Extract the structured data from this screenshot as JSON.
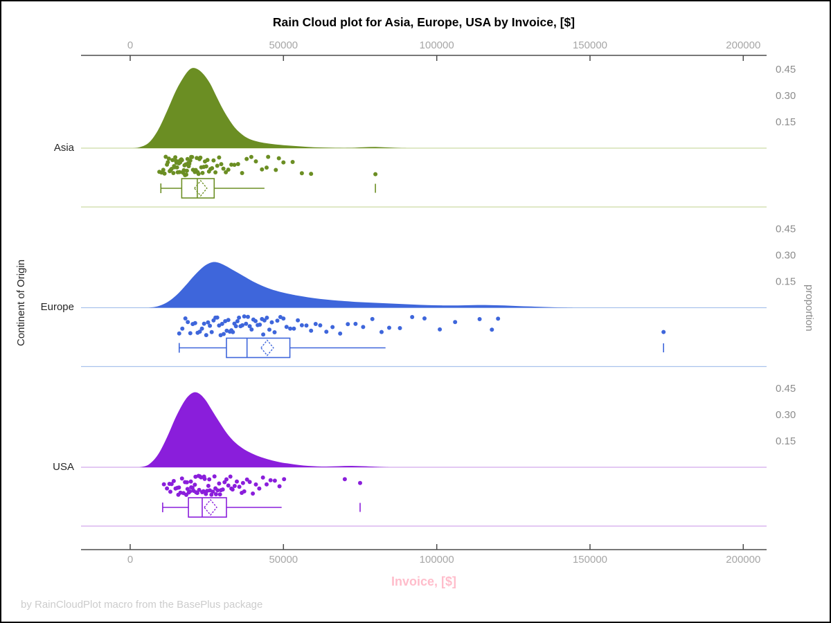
{
  "footnote": "by RainCloudPlot macro from the BasePlus package",
  "colors": {
    "axis": "#4a4a4a",
    "tick_label": "#a6a6a6",
    "proportion_label": "#8c8c8c",
    "title": "#000000",
    "xlabel": "#ffbdcb",
    "footnote": "#cccccc",
    "band_label": "#262626"
  },
  "chart_data": {
    "type": "raincloud",
    "title": "Rain Cloud plot for Asia, Europe, USA by Invoice, [$]",
    "xlabel": "Invoice, [$]",
    "ylabel": "Continent of Origin",
    "y2label": "proportion",
    "x_ticks": [
      0,
      50000,
      100000,
      150000,
      200000
    ],
    "x_tick_labels": [
      "0",
      "50000",
      "100000",
      "150000",
      "200000"
    ],
    "xlim": [
      -16000,
      207600
    ],
    "proportion_ticks": [
      0.45,
      0.3,
      0.15
    ],
    "proportion_tick_labels": [
      "0.45",
      "0.30",
      "0.15"
    ],
    "legend": "none",
    "grid": "off",
    "groups": [
      {
        "name": "Asia",
        "color": "#6b8e23",
        "light_color": "#ccd9a4",
        "box": {
          "whisker_min": 10000,
          "q1": 16800,
          "median": 21900,
          "mean": 23000,
          "q3": 27400,
          "whisker_max": 43800,
          "outliers": [
            80000
          ]
        },
        "density": [
          [
            500,
            0
          ],
          [
            3000,
            0.005
          ],
          [
            6000,
            0.03
          ],
          [
            9000,
            0.1
          ],
          [
            12000,
            0.21
          ],
          [
            15000,
            0.33
          ],
          [
            18000,
            0.42
          ],
          [
            20000,
            0.455
          ],
          [
            22000,
            0.45
          ],
          [
            24000,
            0.42
          ],
          [
            26000,
            0.37
          ],
          [
            28000,
            0.3
          ],
          [
            30000,
            0.23
          ],
          [
            32000,
            0.17
          ],
          [
            34000,
            0.12
          ],
          [
            36000,
            0.085
          ],
          [
            38000,
            0.06
          ],
          [
            40000,
            0.045
          ],
          [
            43000,
            0.032
          ],
          [
            46000,
            0.024
          ],
          [
            50000,
            0.017
          ],
          [
            54000,
            0.012
          ],
          [
            58000,
            0.007
          ],
          [
            62000,
            0.004
          ],
          [
            67000,
            0.002
          ],
          [
            72000,
            0.002
          ],
          [
            76000,
            0.005
          ],
          [
            80000,
            0.007
          ],
          [
            84000,
            0.004
          ],
          [
            88000,
            0.001
          ],
          [
            92000,
            0
          ]
        ],
        "rain": [
          9500,
          10200,
          10800,
          11200,
          11600,
          12000,
          12300,
          12600,
          12900,
          13200,
          13500,
          13800,
          14100,
          14300,
          14500,
          14700,
          14900,
          15100,
          15300,
          15500,
          15700,
          15900,
          16100,
          16300,
          16500,
          16700,
          16900,
          17100,
          17300,
          17500,
          17700,
          17900,
          18100,
          18300,
          18500,
          18700,
          18900,
          19100,
          19300,
          19600,
          19900,
          20200,
          20500,
          20800,
          21100,
          21400,
          21700,
          22000,
          22300,
          22600,
          22900,
          23200,
          23600,
          24000,
          24400,
          24800,
          25200,
          25700,
          26200,
          26700,
          27200,
          27800,
          28400,
          29000,
          29700,
          30400,
          31200,
          32000,
          33000,
          34000,
          35200,
          36500,
          38000,
          39500,
          41000,
          43000,
          45000,
          47500,
          50000,
          53000,
          56000,
          59000,
          44500,
          48500,
          80000
        ]
      },
      {
        "name": "Europe",
        "color": "#3e66db",
        "light_color": "#a9c2ec",
        "box": {
          "whisker_min": 16000,
          "q1": 31400,
          "median": 38100,
          "mean": 44700,
          "q3": 52100,
          "whisker_max": 83300,
          "outliers": [
            174000
          ]
        },
        "density": [
          [
            6000,
            0
          ],
          [
            9000,
            0.008
          ],
          [
            12000,
            0.03
          ],
          [
            15000,
            0.07
          ],
          [
            18000,
            0.125
          ],
          [
            21000,
            0.185
          ],
          [
            24000,
            0.235
          ],
          [
            26500,
            0.258
          ],
          [
            28500,
            0.258
          ],
          [
            31000,
            0.24
          ],
          [
            34000,
            0.21
          ],
          [
            37000,
            0.18
          ],
          [
            40000,
            0.15
          ],
          [
            43000,
            0.125
          ],
          [
            46000,
            0.105
          ],
          [
            49000,
            0.09
          ],
          [
            52000,
            0.078
          ],
          [
            56000,
            0.065
          ],
          [
            60000,
            0.054
          ],
          [
            64000,
            0.046
          ],
          [
            68000,
            0.04
          ],
          [
            72000,
            0.035
          ],
          [
            77000,
            0.03
          ],
          [
            82000,
            0.026
          ],
          [
            87000,
            0.022
          ],
          [
            92000,
            0.018
          ],
          [
            97000,
            0.015
          ],
          [
            102000,
            0.013
          ],
          [
            107000,
            0.013
          ],
          [
            112000,
            0.015
          ],
          [
            117000,
            0.015
          ],
          [
            122000,
            0.013
          ],
          [
            127000,
            0.009
          ],
          [
            132000,
            0.006
          ],
          [
            137000,
            0.003
          ],
          [
            142000,
            0.001
          ],
          [
            147000,
            0
          ]
        ],
        "rain": [
          16000,
          17000,
          18000,
          18800,
          19600,
          20400,
          21200,
          22000,
          22700,
          23400,
          24100,
          24800,
          25400,
          26000,
          26600,
          27200,
          27800,
          28400,
          29000,
          29500,
          30000,
          30500,
          31000,
          31500,
          32000,
          32500,
          33000,
          33500,
          34000,
          34500,
          35000,
          35500,
          36000,
          36600,
          37200,
          37800,
          38400,
          39000,
          39600,
          40200,
          40900,
          41600,
          42300,
          43000,
          43400,
          43800,
          44600,
          45400,
          46200,
          47100,
          48000,
          49000,
          50000,
          51000,
          52200,
          53400,
          54700,
          56000,
          57500,
          59000,
          60500,
          62000,
          64000,
          66000,
          68500,
          71000,
          73500,
          76000,
          79000,
          82000,
          84500,
          88000,
          92000,
          96000,
          101000,
          106000,
          114000,
          118000,
          120000,
          174000
        ]
      },
      {
        "name": "USA",
        "color": "#8a1edb",
        "light_color": "#d2a8ec",
        "box": {
          "whisker_min": 10600,
          "q1": 19000,
          "median": 23500,
          "mean": 26200,
          "q3": 31400,
          "whisker_max": 49400,
          "outliers": [
            75000
          ]
        },
        "density": [
          [
            3000,
            0
          ],
          [
            6000,
            0.015
          ],
          [
            9000,
            0.07
          ],
          [
            12000,
            0.17
          ],
          [
            15000,
            0.29
          ],
          [
            18000,
            0.385
          ],
          [
            20500,
            0.425
          ],
          [
            22500,
            0.42
          ],
          [
            24500,
            0.385
          ],
          [
            26500,
            0.33
          ],
          [
            29000,
            0.26
          ],
          [
            31500,
            0.195
          ],
          [
            34000,
            0.145
          ],
          [
            36500,
            0.11
          ],
          [
            39000,
            0.085
          ],
          [
            41500,
            0.065
          ],
          [
            44000,
            0.05
          ],
          [
            46500,
            0.038
          ],
          [
            49000,
            0.028
          ],
          [
            52000,
            0.02
          ],
          [
            55000,
            0.013
          ],
          [
            58000,
            0.008
          ],
          [
            61000,
            0.005
          ],
          [
            64000,
            0.004
          ],
          [
            68000,
            0.006
          ],
          [
            72000,
            0.008
          ],
          [
            76000,
            0.006
          ],
          [
            80000,
            0.003
          ],
          [
            85000,
            0
          ]
        ],
        "rain": [
          11000,
          12000,
          12800,
          13500,
          14200,
          14800,
          15400,
          15900,
          16400,
          16900,
          17400,
          17900,
          18300,
          18700,
          19100,
          19500,
          19900,
          20300,
          20700,
          21100,
          21500,
          21900,
          22300,
          22700,
          23100,
          23500,
          23900,
          24300,
          24700,
          25100,
          25500,
          26000,
          26500,
          27000,
          27500,
          28000,
          28500,
          29000,
          29600,
          30200,
          30800,
          31400,
          32000,
          32700,
          33400,
          34100,
          34800,
          35600,
          36400,
          37200,
          38100,
          39000,
          40000,
          41000,
          42100,
          43300,
          44500,
          45800,
          47200,
          48700,
          50200,
          27800,
          24100,
          21300,
          18500,
          15700,
          13100,
          22500,
          25800,
          29300,
          33000,
          36800,
          70000,
          75000,
          19800
        ]
      }
    ]
  }
}
